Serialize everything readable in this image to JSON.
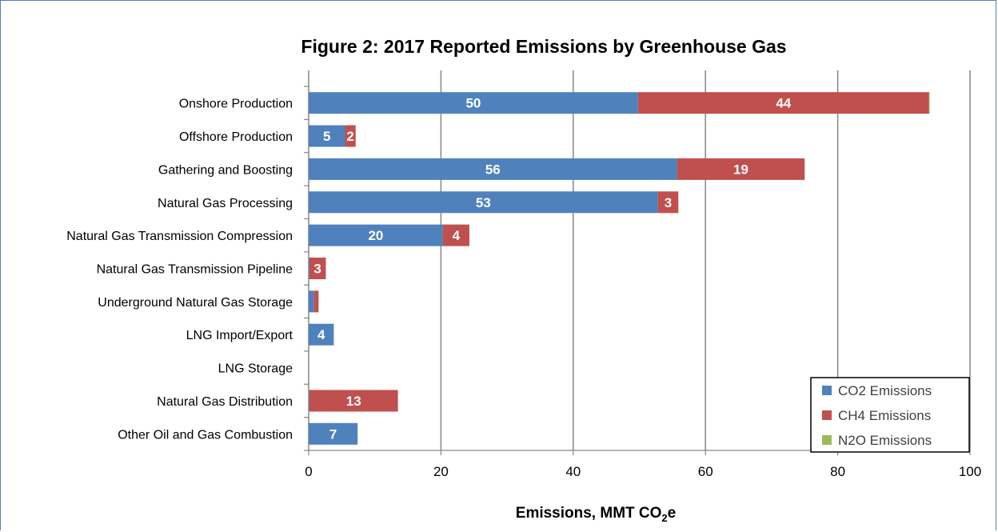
{
  "chart_data": {
    "type": "bar",
    "orientation": "horizontal",
    "stacked": true,
    "title": "Figure 2: 2017 Reported Emissions by Greenhouse Gas",
    "xlabel": "Emissions, MMT CO",
    "xlabel_subscript": "2",
    "xlabel_suffix": "e",
    "ylabel": "",
    "xlim": [
      0,
      100
    ],
    "xticks": [
      0,
      20,
      40,
      60,
      80,
      100
    ],
    "grid": "vertical",
    "legend_position": "bottom-right",
    "categories": [
      "Onshore Production",
      "Offshore Production",
      "Gathering and Boosting",
      "Natural Gas Processing",
      "Natural Gas Transmission Compression",
      "Natural Gas Transmission Pipeline",
      "Underground Natural Gas Storage",
      "LNG Import/Export",
      "LNG Storage",
      "Natural Gas Distribution",
      "Other Oil and Gas Combustion"
    ],
    "series": [
      {
        "name": "CO2 Emissions",
        "color": "#4f81bd",
        "values": [
          49.8,
          5.5,
          55.7,
          52.8,
          20.3,
          0.1,
          0.8,
          3.8,
          0.0,
          0.1,
          7.4
        ],
        "labels": [
          "50",
          "5",
          "56",
          "53",
          "20",
          "",
          "",
          "4",
          "",
          "",
          "7"
        ]
      },
      {
        "name": "CH4 Emissions",
        "color": "#c0504d",
        "values": [
          44.0,
          1.6,
          19.3,
          3.1,
          4.0,
          2.5,
          0.7,
          0.0,
          0.0,
          13.4,
          0.0
        ],
        "labels": [
          "44",
          "2",
          "19",
          "3",
          "4",
          "3",
          "",
          "",
          "",
          "13",
          ""
        ]
      },
      {
        "name": "N2O Emissions",
        "color": "#9bbb59",
        "values": [
          0.1,
          0.0,
          0.0,
          0.0,
          0.0,
          0.0,
          0.0,
          0.0,
          0.0,
          0.0,
          0.0
        ],
        "labels": [
          "",
          "",
          "",
          "",
          "",
          "",
          "",
          "",
          "",
          "",
          ""
        ]
      }
    ]
  }
}
